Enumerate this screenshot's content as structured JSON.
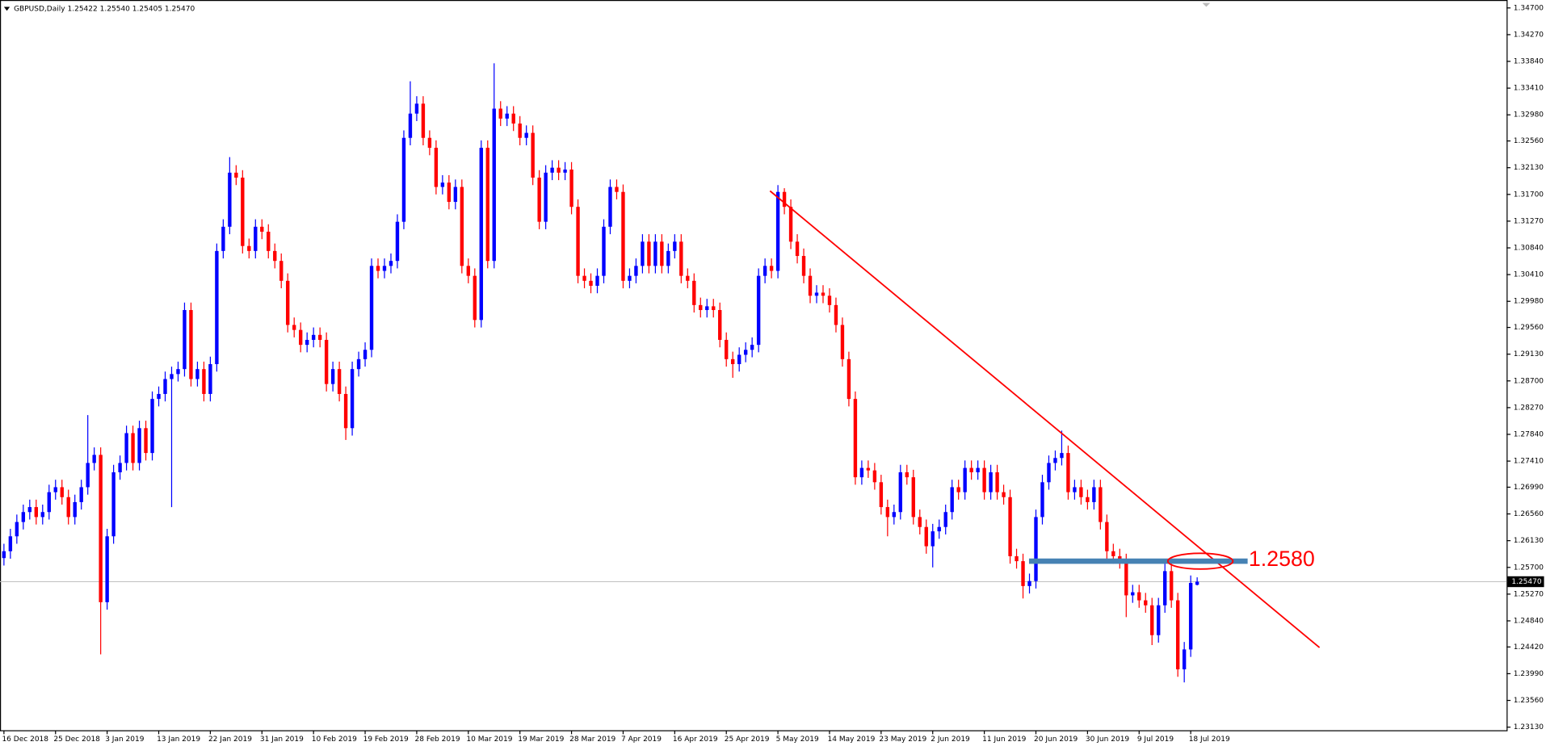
{
  "chart_data": {
    "type": "candlestick",
    "title": "GBPUSD,Daily  1.25422 1.25540 1.25405 1.25470",
    "up_color": "#0000ff",
    "down_color": "#ff0000",
    "categories": [
      "16 Dec 2018",
      null,
      null,
      null,
      null,
      null,
      null,
      null,
      "25 Dec 2018",
      null,
      null,
      null,
      null,
      null,
      null,
      null,
      "3 Jan 2019",
      null,
      null,
      null,
      null,
      null,
      null,
      null,
      "13 Jan 2019",
      null,
      null,
      null,
      null,
      null,
      null,
      null,
      "22 Jan 2019",
      null,
      null,
      null,
      null,
      null,
      null,
      null,
      "31 Jan 2019",
      null,
      null,
      null,
      null,
      null,
      null,
      null,
      "10 Feb 2019",
      null,
      null,
      null,
      null,
      null,
      null,
      null,
      "19 Feb 2019",
      null,
      null,
      null,
      null,
      null,
      null,
      null,
      "28 Feb 2019",
      null,
      null,
      null,
      null,
      null,
      null,
      null,
      "10 Mar 2019",
      null,
      null,
      null,
      null,
      null,
      null,
      null,
      "19 Mar 2019",
      null,
      null,
      null,
      null,
      null,
      null,
      null,
      "28 Mar 2019",
      null,
      null,
      null,
      null,
      null,
      null,
      null,
      "7 Apr 2019",
      null,
      null,
      null,
      null,
      null,
      null,
      null,
      "16 Apr 2019",
      null,
      null,
      null,
      null,
      null,
      null,
      null,
      "25 Apr 2019",
      null,
      null,
      null,
      null,
      null,
      null,
      null,
      "5 May 2019",
      null,
      null,
      null,
      null,
      null,
      null,
      null,
      "14 May 2019",
      null,
      null,
      null,
      null,
      null,
      null,
      null,
      "23 May 2019",
      null,
      null,
      null,
      null,
      null,
      null,
      null,
      "2 Jun 2019",
      null,
      null,
      null,
      null,
      null,
      null,
      null,
      "11 Jun 2019",
      null,
      null,
      null,
      null,
      null,
      null,
      null,
      "20 Jun 2019",
      null,
      null,
      null,
      null,
      null,
      null,
      null,
      "30 Jun 2019",
      null,
      null,
      null,
      null,
      null,
      null,
      null,
      "9 Jul 2019",
      null,
      null,
      null,
      null,
      null,
      null,
      null,
      "18 Jul 2019",
      null
    ],
    "open": [
      1.2585,
      1.2596,
      1.262,
      1.2643,
      1.2659,
      1.2667,
      1.2651,
      1.2659,
      1.2691,
      1.2699,
      1.2683,
      1.2651,
      1.2675,
      1.2699,
      1.2738,
      1.2751,
      1.2514,
      1.262,
      1.2723,
      1.2738,
      1.2786,
      1.2738,
      1.2794,
      1.2754,
      1.2841,
      1.2849,
      1.2873,
      1.2881,
      1.2889,
      1.2984,
      1.2873,
      1.2889,
      1.2849,
      1.2897,
      1.3079,
      1.3118,
      1.3205,
      1.3197,
      1.3087,
      1.3079,
      1.3118,
      1.311,
      1.3079,
      1.3063,
      1.3031,
      1.296,
      1.2952,
      1.2928,
      1.2936,
      1.2944,
      1.2936,
      1.2865,
      1.2889,
      1.2849,
      1.2794,
      1.2889,
      1.2905,
      1.292,
      1.3055,
      1.3047,
      1.3055,
      1.3063,
      1.3126,
      1.3261,
      1.33,
      1.3316,
      1.3261,
      1.3245,
      1.3182,
      1.3189,
      1.3158,
      1.3182,
      1.3055,
      1.3039,
      1.2968,
      1.3245,
      1.3063,
      1.3308,
      1.3292,
      1.33,
      1.3284,
      1.3261,
      1.3269,
      1.3197,
      1.3126,
      1.3205,
      1.3213,
      1.3205,
      1.321,
      1.315,
      1.3039,
      1.3031,
      1.3023,
      1.3039,
      1.3118,
      1.3182,
      1.3174,
      1.3031,
      1.3039,
      1.3055,
      1.3094,
      1.3055,
      1.3094,
      1.3055,
      1.3079,
      1.3094,
      1.3039,
      1.3031,
      1.2992,
      1.2984,
      1.299,
      1.2984,
      1.2936,
      1.2905,
      1.2897,
      1.2912,
      1.292,
      1.2928,
      1.3039,
      1.3055,
      1.3047,
      1.3174,
      1.315,
      1.3094,
      1.3071,
      1.3039,
      1.3007,
      1.3012,
      1.3007,
      1.2992,
      1.296,
      1.2905,
      1.2841,
      1.2715,
      1.273,
      1.2726,
      1.2707,
      1.2667,
      1.2651,
      1.2659,
      1.2723,
      1.2715,
      1.2651,
      1.2635,
      1.2604,
      1.2628,
      1.2635,
      1.2659,
      1.2699,
      1.2691,
      1.273,
      1.2723,
      1.273,
      1.2691,
      1.2723,
      1.2691,
      1.2683,
      1.2588,
      1.258,
      1.254,
      1.2548,
      1.2651,
      1.2707,
      1.2738,
      1.2746,
      1.2754,
      1.2691,
      1.2699,
      1.2683,
      1.2675,
      1.2699,
      1.2643,
      1.2596,
      1.2588,
      1.258,
      1.2525,
      1.253,
      1.2517,
      1.2509,
      1.2461,
      1.2509,
      1.2564,
      1.2517,
      1.2406,
      1.2438,
      1.2542
    ],
    "high": [
      1.2608,
      1.2632,
      1.2655,
      1.2671,
      1.2679,
      1.2679,
      1.2671,
      1.2703,
      1.2711,
      1.2711,
      1.2695,
      1.2687,
      1.2711,
      1.2815,
      1.2763,
      1.2763,
      1.2632,
      1.2735,
      1.275,
      1.2798,
      1.2798,
      1.2806,
      1.2806,
      1.2853,
      1.2861,
      1.2885,
      1.2893,
      1.2901,
      1.2996,
      1.2996,
      1.2901,
      1.2901,
      1.2909,
      1.3091,
      1.313,
      1.323,
      1.3217,
      1.3209,
      1.3099,
      1.313,
      1.313,
      1.3122,
      1.3091,
      1.3075,
      1.3043,
      1.2972,
      1.2964,
      1.2948,
      1.2956,
      1.2956,
      1.2948,
      1.2901,
      1.2901,
      1.2861,
      1.2901,
      1.2917,
      1.2932,
      1.3067,
      1.3067,
      1.3067,
      1.3075,
      1.3138,
      1.3273,
      1.3352,
      1.3328,
      1.3328,
      1.3273,
      1.3257,
      1.3201,
      1.3201,
      1.3194,
      1.3194,
      1.3067,
      1.3051,
      1.3257,
      1.3257,
      1.3381,
      1.332,
      1.3312,
      1.3312,
      1.3296,
      1.3281,
      1.3281,
      1.3209,
      1.3217,
      1.3225,
      1.3225,
      1.3222,
      1.3222,
      1.3162,
      1.3051,
      1.3043,
      1.3051,
      1.313,
      1.3194,
      1.3194,
      1.3186,
      1.3051,
      1.3067,
      1.3106,
      1.3106,
      1.3106,
      1.3106,
      1.3091,
      1.3106,
      1.3106,
      1.3051,
      1.3043,
      1.3004,
      1.3002,
      1.3002,
      1.2996,
      1.2948,
      1.2917,
      1.2924,
      1.2932,
      1.294,
      1.3051,
      1.3067,
      1.3067,
      1.3185,
      1.318,
      1.3162,
      1.3106,
      1.3083,
      1.3051,
      1.3024,
      1.3024,
      1.3019,
      1.3004,
      1.2972,
      1.2917,
      1.2853,
      1.2742,
      1.2742,
      1.2738,
      1.2719,
      1.2679,
      1.2671,
      1.2735,
      1.2735,
      1.2727,
      1.2663,
      1.2647,
      1.264,
      1.2647,
      1.2671,
      1.2711,
      1.2711,
      1.2742,
      1.2742,
      1.2742,
      1.2742,
      1.2735,
      1.2735,
      1.2703,
      1.2695,
      1.26,
      1.2592,
      1.256,
      1.2663,
      1.2719,
      1.275,
      1.2758,
      1.279,
      1.2766,
      1.2711,
      1.2711,
      1.2695,
      1.2711,
      1.2711,
      1.2655,
      1.2608,
      1.26,
      1.2592,
      1.2542,
      1.2542,
      1.2529,
      1.2521,
      1.2521,
      1.2583,
      1.2576,
      1.2529,
      1.245,
      1.2557,
      1.2554
    ],
    "low": [
      1.2573,
      1.2584,
      1.2608,
      1.2631,
      1.2647,
      1.2639,
      1.2639,
      1.2647,
      1.2679,
      1.2671,
      1.2639,
      1.2639,
      1.2663,
      1.2687,
      1.2726,
      1.243,
      1.2502,
      1.2608,
      1.2711,
      1.2726,
      1.2726,
      1.2726,
      1.2742,
      1.2742,
      1.2829,
      1.2837,
      1.2667,
      1.2869,
      1.2877,
      1.2861,
      1.2861,
      1.2837,
      1.2837,
      1.2885,
      1.3067,
      1.3106,
      1.3185,
      1.3075,
      1.3067,
      1.3067,
      1.3098,
      1.3067,
      1.3051,
      1.3019,
      1.2948,
      1.294,
      1.2916,
      1.2916,
      1.2924,
      1.2924,
      1.2853,
      1.2853,
      1.2837,
      1.2775,
      1.2782,
      1.2877,
      1.2893,
      1.2908,
      1.3035,
      1.3035,
      1.3043,
      1.3051,
      1.3114,
      1.3249,
      1.3288,
      1.3249,
      1.3233,
      1.317,
      1.317,
      1.3146,
      1.3146,
      1.3043,
      1.3027,
      1.2956,
      1.2956,
      1.3051,
      1.3051,
      1.328,
      1.328,
      1.3272,
      1.3249,
      1.3249,
      1.3185,
      1.3114,
      1.3114,
      1.3193,
      1.3193,
      1.3193,
      1.3138,
      1.3027,
      1.3019,
      1.3011,
      1.3011,
      1.3027,
      1.3106,
      1.3162,
      1.3019,
      1.3019,
      1.3027,
      1.3043,
      1.3043,
      1.3043,
      1.3043,
      1.3043,
      1.3067,
      1.3027,
      1.3019,
      1.298,
      1.2972,
      1.2972,
      1.2972,
      1.2924,
      1.2893,
      1.2875,
      1.2885,
      1.29,
      1.2908,
      1.2916,
      1.3027,
      1.3035,
      1.3035,
      1.3138,
      1.3082,
      1.3059,
      1.3027,
      1.2995,
      1.2995,
      1.2995,
      1.298,
      1.2948,
      1.2893,
      1.2829,
      1.2703,
      1.2703,
      1.2714,
      1.2695,
      1.2655,
      1.262,
      1.2639,
      1.2647,
      1.2703,
      1.2639,
      1.2623,
      1.2592,
      1.257,
      1.2616,
      1.2623,
      1.2647,
      1.2679,
      1.2679,
      1.2711,
      1.2711,
      1.2679,
      1.2679,
      1.2679,
      1.2671,
      1.2576,
      1.2568,
      1.252,
      1.2528,
      1.2536,
      1.2639,
      1.2695,
      1.2726,
      1.2734,
      1.2679,
      1.2679,
      1.2671,
      1.2663,
      1.2663,
      1.2631,
      1.2584,
      1.2576,
      1.2568,
      1.249,
      1.2513,
      1.2505,
      1.2497,
      1.2445,
      1.2449,
      1.2497,
      1.2505,
      1.2394,
      1.2385,
      1.2426,
      1.2541
    ],
    "close": [
      1.2596,
      1.262,
      1.2643,
      1.2659,
      1.2667,
      1.2651,
      1.2659,
      1.2691,
      1.2699,
      1.2683,
      1.2651,
      1.2675,
      1.2699,
      1.2738,
      1.2751,
      1.2514,
      1.262,
      1.2723,
      1.2738,
      1.2786,
      1.2738,
      1.2794,
      1.2754,
      1.2841,
      1.2849,
      1.2873,
      1.2881,
      1.2889,
      1.2984,
      1.2873,
      1.2889,
      1.2849,
      1.2897,
      1.3079,
      1.3118,
      1.3205,
      1.3197,
      1.3087,
      1.3079,
      1.3118,
      1.311,
      1.3079,
      1.3063,
      1.3031,
      1.296,
      1.2952,
      1.2928,
      1.2936,
      1.2944,
      1.2936,
      1.2865,
      1.2889,
      1.2849,
      1.2794,
      1.2889,
      1.2905,
      1.292,
      1.3055,
      1.3047,
      1.3055,
      1.3063,
      1.3126,
      1.3261,
      1.33,
      1.3316,
      1.3261,
      1.3245,
      1.3182,
      1.3189,
      1.3158,
      1.3182,
      1.3055,
      1.3039,
      1.2968,
      1.3245,
      1.3063,
      1.3308,
      1.3292,
      1.33,
      1.3284,
      1.3261,
      1.3269,
      1.3197,
      1.3126,
      1.3205,
      1.3213,
      1.3205,
      1.321,
      1.315,
      1.3039,
      1.3031,
      1.3023,
      1.3039,
      1.3118,
      1.3182,
      1.3174,
      1.3031,
      1.3039,
      1.3055,
      1.3094,
      1.3055,
      1.3094,
      1.3055,
      1.3079,
      1.3094,
      1.3039,
      1.3031,
      1.2992,
      1.2984,
      1.299,
      1.2984,
      1.2936,
      1.2905,
      1.2897,
      1.2912,
      1.292,
      1.2928,
      1.3039,
      1.3055,
      1.3047,
      1.3174,
      1.315,
      1.3094,
      1.3071,
      1.3039,
      1.3007,
      1.3012,
      1.3007,
      1.2992,
      1.296,
      1.2905,
      1.2841,
      1.2715,
      1.273,
      1.2726,
      1.2707,
      1.2667,
      1.2651,
      1.2659,
      1.2723,
      1.2715,
      1.2651,
      1.2635,
      1.2604,
      1.2628,
      1.2635,
      1.2659,
      1.2699,
      1.2691,
      1.273,
      1.2723,
      1.273,
      1.2691,
      1.2723,
      1.2691,
      1.2683,
      1.2588,
      1.258,
      1.254,
      1.2548,
      1.2651,
      1.2707,
      1.2738,
      1.2746,
      1.2754,
      1.2691,
      1.2699,
      1.2683,
      1.2675,
      1.2699,
      1.2643,
      1.2596,
      1.2588,
      1.258,
      1.2525,
      1.253,
      1.2517,
      1.2509,
      1.2461,
      1.2509,
      1.2564,
      1.2517,
      1.2406,
      1.2438,
      1.2545,
      1.2547
    ],
    "ylim": [
      1.2308,
      1.3478
    ],
    "yticks": [
      {
        "value": 1.347,
        "label": "1.34700"
      },
      {
        "value": 1.3427,
        "label": "1.34270"
      },
      {
        "value": 1.3384,
        "label": "1.33840"
      },
      {
        "value": 1.3341,
        "label": "1.33410"
      },
      {
        "value": 1.3298,
        "label": "1.32980"
      },
      {
        "value": 1.3256,
        "label": "1.32560"
      },
      {
        "value": 1.3213,
        "label": "1.32130"
      },
      {
        "value": 1.317,
        "label": "1.31700"
      },
      {
        "value": 1.3127,
        "label": "1.31270"
      },
      {
        "value": 1.3084,
        "label": "1.30840"
      },
      {
        "value": 1.3041,
        "label": "1.30410"
      },
      {
        "value": 1.2998,
        "label": "1.29980"
      },
      {
        "value": 1.2956,
        "label": "1.29560"
      },
      {
        "value": 1.2913,
        "label": "1.29130"
      },
      {
        "value": 1.287,
        "label": "1.28700"
      },
      {
        "value": 1.2827,
        "label": "1.28270"
      },
      {
        "value": 1.2784,
        "label": "1.27840"
      },
      {
        "value": 1.2741,
        "label": "1.27410"
      },
      {
        "value": 1.2699,
        "label": "1.26990"
      },
      {
        "value": 1.2656,
        "label": "1.26560"
      },
      {
        "value": 1.2613,
        "label": "1.26130"
      },
      {
        "value": 1.257,
        "label": "1.25700"
      },
      {
        "value": 1.2527,
        "label": "1.25270"
      },
      {
        "value": 1.2484,
        "label": "1.24840"
      },
      {
        "value": 1.2442,
        "label": "1.24420"
      },
      {
        "value": 1.2399,
        "label": "1.23990"
      },
      {
        "value": 1.2356,
        "label": "1.23560"
      },
      {
        "value": 1.2313,
        "label": "1.23130"
      }
    ],
    "last_price": {
      "value": 1.2547,
      "label": "1.25470"
    },
    "level": {
      "value": 1.258,
      "label": "1.2580"
    }
  }
}
